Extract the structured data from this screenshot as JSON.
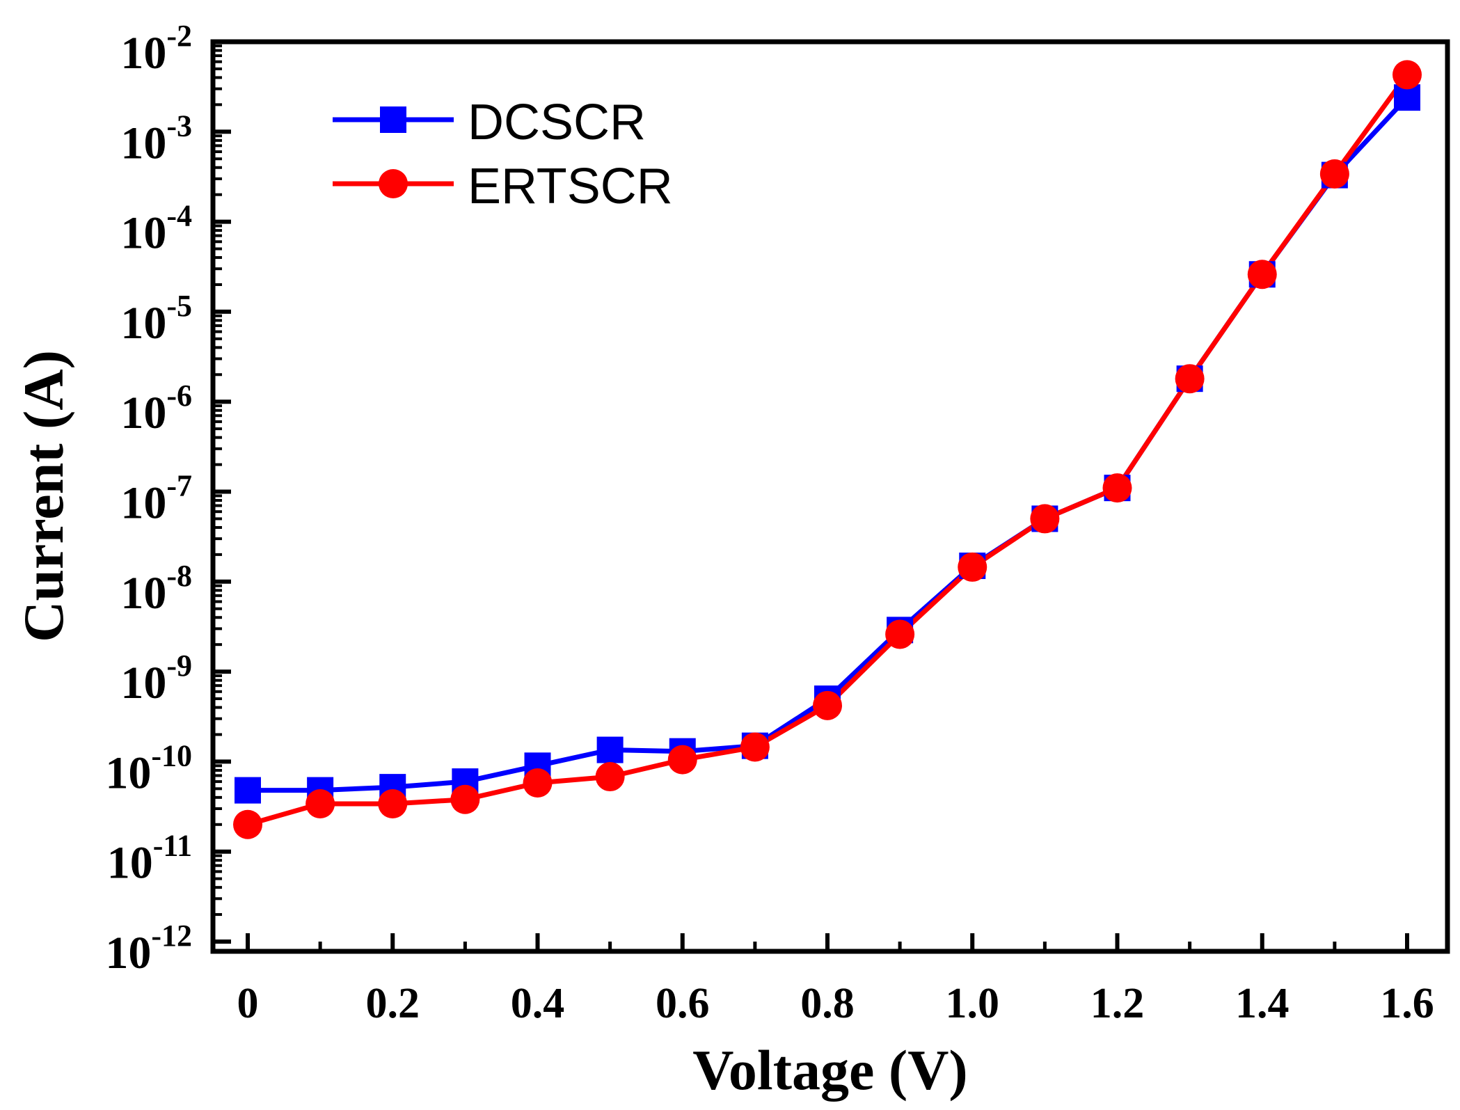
{
  "chart_data": {
    "type": "line",
    "title": "",
    "xlabel": "Voltage (V)",
    "ylabel": "Current (A)",
    "xlim": [
      -0.05,
      1.65
    ],
    "ylim": [
      1e-12,
      0.01
    ],
    "yscale": "log",
    "grid": false,
    "legend_position": "top-left",
    "x_ticks": [
      "0",
      "0.2",
      "0.4",
      "0.6",
      "0.8",
      "1.0",
      "1.2",
      "1.4",
      "1.6"
    ],
    "x_tick_values": [
      0,
      0.2,
      0.4,
      0.6,
      0.8,
      1.0,
      1.2,
      1.4,
      1.6
    ],
    "y_ticks": [
      {
        "base": "10",
        "exp": "-12",
        "value": 1e-12
      },
      {
        "base": "10",
        "exp": "-11",
        "value": 1e-11
      },
      {
        "base": "10",
        "exp": "-10",
        "value": 1e-10
      },
      {
        "base": "10",
        "exp": "-9",
        "value": 1e-09
      },
      {
        "base": "10",
        "exp": "-8",
        "value": 1e-08
      },
      {
        "base": "10",
        "exp": "-7",
        "value": 1e-07
      },
      {
        "base": "10",
        "exp": "-6",
        "value": 1e-06
      },
      {
        "base": "10",
        "exp": "-5",
        "value": 1e-05
      },
      {
        "base": "10",
        "exp": "-4",
        "value": 0.0001
      },
      {
        "base": "10",
        "exp": "-3",
        "value": 0.001
      },
      {
        "base": "10",
        "exp": "-2",
        "value": 0.01
      }
    ],
    "x": [
      0,
      0.1,
      0.2,
      0.3,
      0.4,
      0.5,
      0.6,
      0.7,
      0.8,
      0.9,
      1.0,
      1.1,
      1.2,
      1.3,
      1.4,
      1.5,
      1.6
    ],
    "series": [
      {
        "name": "DCSCR",
        "color": "#0000ff",
        "marker": "square",
        "values": [
          4.8e-11,
          4.8e-11,
          5.2e-11,
          6e-11,
          9e-11,
          1.35e-10,
          1.3e-10,
          1.5e-10,
          5e-10,
          2.9e-09,
          1.5e-08,
          5e-08,
          1.1e-07,
          1.8e-06,
          2.6e-05,
          0.00033,
          0.0024
        ]
      },
      {
        "name": "ERTSCR",
        "color": "#ff0000",
        "marker": "circle",
        "values": [
          2e-11,
          3.4e-11,
          3.4e-11,
          3.8e-11,
          5.8e-11,
          6.8e-11,
          1.05e-10,
          1.45e-10,
          4.2e-10,
          2.6e-09,
          1.45e-08,
          5e-08,
          1.1e-07,
          1.8e-06,
          2.6e-05,
          0.00034,
          0.0043
        ]
      }
    ]
  }
}
